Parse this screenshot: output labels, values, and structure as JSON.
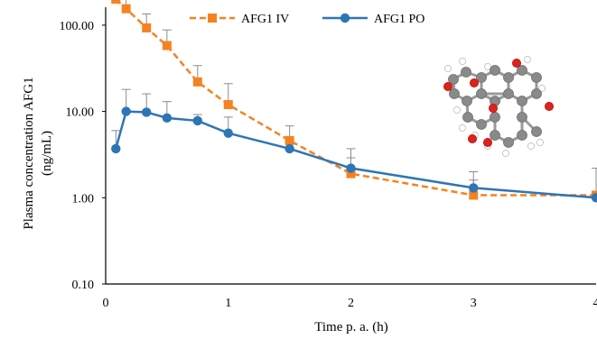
{
  "chart_data": {
    "type": "line",
    "title": "",
    "xlabel": "Time p. a. (h)",
    "ylabel_lines": [
      "Plasma concentration AFG1",
      "(ng/mL)"
    ],
    "x_scale": "linear",
    "y_scale": "log",
    "xlim": [
      0,
      4
    ],
    "ylim": [
      0.1,
      200
    ],
    "x_ticks": [
      0,
      1,
      2,
      3,
      4
    ],
    "x_tick_labels": [
      "0",
      "1",
      "2",
      "3",
      "4"
    ],
    "y_ticks": [
      0.1,
      1,
      10,
      100
    ],
    "y_tick_labels": [
      "0.10",
      "1.00",
      "10.00",
      "100.00"
    ],
    "grid": false,
    "legend_position": "top",
    "series": [
      {
        "name": "AFG1 IV",
        "color": "#F58220",
        "line_style": "dashed",
        "marker": "square",
        "x": [
          0.083,
          0.167,
          0.333,
          0.5,
          0.75,
          1,
          1.5,
          2,
          3,
          4
        ],
        "y": [
          200,
          155,
          93,
          58,
          22,
          12,
          4.6,
          1.9,
          1.07,
          1.07
        ],
        "error_upper": [
          210,
          200,
          135,
          88,
          34,
          21,
          6.8,
          2.9,
          1.6,
          2.2
        ]
      },
      {
        "name": "AFG1 PO",
        "color": "#2E75B6",
        "line_style": "solid",
        "marker": "circle",
        "x": [
          0.083,
          0.167,
          0.333,
          0.5,
          0.75,
          1,
          1.5,
          2,
          3,
          4
        ],
        "y": [
          3.7,
          10,
          9.8,
          8.4,
          7.8,
          5.6,
          3.7,
          2.2,
          1.3,
          1.0
        ],
        "error_upper": [
          6,
          18,
          16,
          13,
          9.2,
          8.6,
          3.7,
          3.7,
          2.0,
          1.0
        ]
      }
    ],
    "molecule_image": "aflatoxin-g1-ball-and-stick-molecule"
  }
}
